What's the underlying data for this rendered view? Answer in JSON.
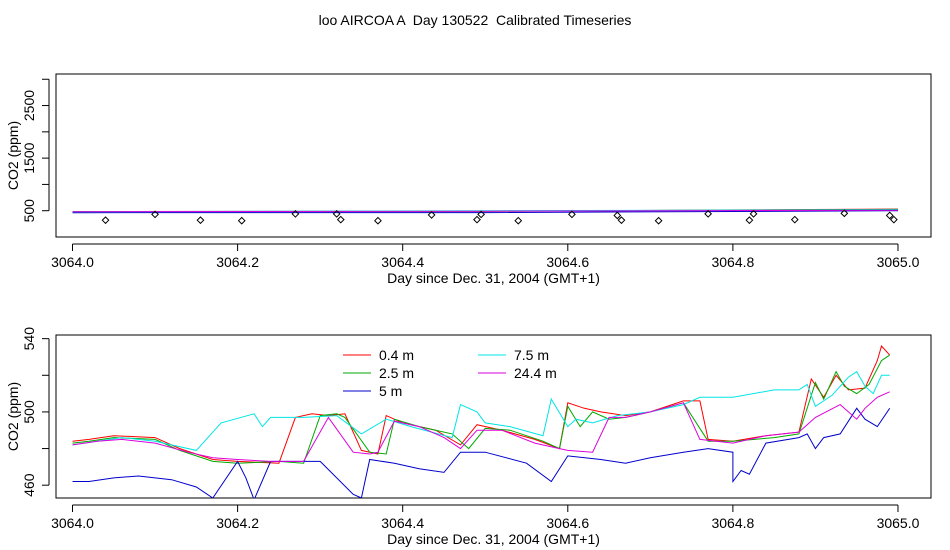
{
  "figure": {
    "title": "loo AIRCOA A  Day 130522  Calibrated Timeseries"
  },
  "chart_data": [
    {
      "type": "line",
      "title": "",
      "xlabel": "Day since Dec. 31, 2004 (GMT+1)",
      "ylabel": "CO2 (ppm)",
      "xlim": [
        3063.98,
        3065.04
      ],
      "ylim": [
        0,
        3100
      ],
      "xticks": [
        3064.0,
        3064.2,
        3064.4,
        3064.6,
        3064.8,
        3065.0
      ],
      "xtick_labels": [
        "3064.0",
        "3064.2",
        "3064.4",
        "3064.6",
        "3064.8",
        "3065.0"
      ],
      "yticks": [
        500,
        1500,
        2500
      ],
      "ytick_labels": [
        "500",
        "1500",
        "2500"
      ],
      "yminor_ticks": [
        1000,
        2000,
        3000
      ],
      "grid": false,
      "series": [
        {
          "color": "#ff0000",
          "x": [
            3064.0,
            3064.5,
            3065.0
          ],
          "y": [
            485,
            490,
            530
          ]
        },
        {
          "color": "#00aa00",
          "x": [
            3064.0,
            3064.5,
            3065.0
          ],
          "y": [
            483,
            489,
            527
          ]
        },
        {
          "color": "#0000cc",
          "x": [
            3064.0,
            3064.5,
            3065.0
          ],
          "y": [
            462,
            465,
            500
          ]
        },
        {
          "color": "#00e5e5",
          "x": [
            3064.0,
            3064.5,
            3065.0
          ],
          "y": [
            482,
            500,
            520
          ]
        },
        {
          "color": "#dd00dd",
          "x": [
            3064.0,
            3064.5,
            3065.0
          ],
          "y": [
            481,
            490,
            510
          ]
        }
      ],
      "scatter": {
        "marker": "diamond",
        "x": [
          3064.04,
          3064.1,
          3064.155,
          3064.205,
          3064.27,
          3064.32,
          3064.325,
          3064.37,
          3064.435,
          3064.49,
          3064.495,
          3064.54,
          3064.605,
          3064.66,
          3064.665,
          3064.71,
          3064.77,
          3064.82,
          3064.825,
          3064.875,
          3064.935,
          3064.99,
          3064.995
        ],
        "y": [
          320,
          430,
          320,
          310,
          440,
          440,
          330,
          310,
          420,
          330,
          430,
          310,
          430,
          410,
          320,
          310,
          440,
          320,
          440,
          330,
          450,
          410,
          330
        ]
      }
    },
    {
      "type": "line",
      "title": "",
      "xlabel": "Day since Dec. 31, 2004 (GMT+1)",
      "ylabel": "CO2 (ppm)",
      "xlim": [
        3063.98,
        3065.04
      ],
      "ylim": [
        453,
        542
      ],
      "xticks": [
        3064.0,
        3064.2,
        3064.4,
        3064.6,
        3064.8,
        3065.0
      ],
      "xtick_labels": [
        "3064.0",
        "3064.2",
        "3064.4",
        "3064.6",
        "3064.8",
        "3065.0"
      ],
      "yticks": [
        460,
        500,
        540
      ],
      "ytick_labels": [
        "460",
        "500",
        "540"
      ],
      "yminor_ticks": [
        480,
        520
      ],
      "grid": false,
      "legend": {
        "placement": "top-center",
        "entries": [
          {
            "label": "0.4 m",
            "color": "#ff0000"
          },
          {
            "label": "2.5 m",
            "color": "#00aa00"
          },
          {
            "label": "5 m",
            "color": "#0000cc"
          },
          {
            "label": "7.5 m",
            "color": "#00e5e5"
          },
          {
            "label": "24.4 m",
            "color": "#dd00dd"
          }
        ]
      },
      "series": [
        {
          "name": "0.4 m",
          "color": "#ff0000",
          "x": [
            3064.0,
            3064.02,
            3064.05,
            3064.1,
            3064.13,
            3064.17,
            3064.2,
            3064.25,
            3064.27,
            3064.29,
            3064.31,
            3064.33,
            3064.35,
            3064.37,
            3064.38,
            3064.4,
            3064.44,
            3064.47,
            3064.49,
            3064.52,
            3064.56,
            3064.59,
            3064.6,
            3064.62,
            3064.64,
            3064.67,
            3064.7,
            3064.74,
            3064.76,
            3064.77,
            3064.8,
            3064.84,
            3064.88,
            3064.895,
            3064.91,
            3064.925,
            3064.94,
            3064.96,
            3064.975,
            3064.98,
            3064.99
          ],
          "y": [
            484,
            485,
            487,
            486,
            480,
            474,
            473,
            472,
            497,
            499,
            498,
            499,
            479,
            477,
            498,
            494,
            490,
            482,
            493,
            490,
            485,
            480,
            505,
            502,
            500,
            498,
            500,
            506,
            506,
            485,
            484,
            487,
            489,
            518,
            508,
            520,
            512,
            513,
            528,
            536,
            531
          ]
        },
        {
          "name": "2.5 m",
          "color": "#00aa00",
          "x": [
            3064.0,
            3064.02,
            3064.05,
            3064.1,
            3064.13,
            3064.17,
            3064.2,
            3064.25,
            3064.28,
            3064.3,
            3064.32,
            3064.33,
            3064.36,
            3064.38,
            3064.39,
            3064.42,
            3064.46,
            3064.48,
            3064.5,
            3064.53,
            3064.57,
            3064.59,
            3064.6,
            3064.615,
            3064.63,
            3064.65,
            3064.67,
            3064.7,
            3064.74,
            3064.77,
            3064.8,
            3064.85,
            3064.88,
            3064.9,
            3064.91,
            3064.925,
            3064.935,
            3064.95,
            3064.965,
            3064.98,
            3064.99
          ],
          "y": [
            483,
            484,
            486,
            485,
            479,
            473,
            472,
            473,
            472,
            498,
            499,
            497,
            478,
            477,
            496,
            492,
            488,
            480,
            491,
            490,
            484,
            480,
            503,
            492,
            500,
            496,
            497,
            500,
            505,
            484,
            484,
            486,
            488,
            516,
            507,
            522,
            514,
            510,
            515,
            528,
            531
          ]
        },
        {
          "name": "5 m",
          "color": "#0000cc",
          "x": [
            3064.0,
            3064.02,
            3064.05,
            3064.08,
            3064.12,
            3064.15,
            3064.17,
            3064.2,
            3064.21,
            3064.22,
            3064.24,
            3064.3,
            3064.34,
            3064.35,
            3064.36,
            3064.39,
            3064.42,
            3064.45,
            3064.47,
            3064.5,
            3064.55,
            3064.58,
            3064.6,
            3064.64,
            3064.67,
            3064.7,
            3064.74,
            3064.77,
            3064.8,
            3064.8,
            3064.81,
            3064.82,
            3064.84,
            3064.88,
            3064.89,
            3064.9,
            3064.91,
            3064.93,
            3064.95,
            3064.96,
            3064.975,
            3064.99
          ],
          "y": [
            462,
            462,
            464,
            465,
            463,
            459,
            453,
            473,
            464,
            452,
            473,
            473,
            455,
            453,
            474,
            472,
            469,
            467,
            478,
            478,
            472,
            462,
            476,
            474,
            472,
            475,
            478,
            480,
            478,
            462,
            468,
            466,
            483,
            486,
            488,
            480,
            486,
            488,
            502,
            496,
            492,
            502
          ]
        },
        {
          "name": "7.5 m",
          "color": "#00e5e5",
          "x": [
            3064.0,
            3064.03,
            3064.06,
            3064.1,
            3064.15,
            3064.18,
            3064.22,
            3064.23,
            3064.24,
            3064.28,
            3064.32,
            3064.35,
            3064.38,
            3064.41,
            3064.46,
            3064.47,
            3064.49,
            3064.5,
            3064.53,
            3064.57,
            3064.58,
            3064.6,
            3064.61,
            3064.63,
            3064.66,
            3064.7,
            3064.74,
            3064.76,
            3064.8,
            3064.85,
            3064.88,
            3064.89,
            3064.9,
            3064.92,
            3064.94,
            3064.95,
            3064.96,
            3064.97,
            3064.98,
            3064.99
          ],
          "y": [
            482,
            484,
            486,
            484,
            479,
            494,
            499,
            492,
            497,
            497,
            498,
            488,
            496,
            492,
            486,
            504,
            500,
            494,
            492,
            487,
            507,
            492,
            496,
            494,
            498,
            500,
            504,
            508,
            508,
            512,
            512,
            515,
            503,
            509,
            519,
            522,
            514,
            510,
            520,
            520
          ]
        },
        {
          "name": "24.4 m",
          "color": "#dd00dd",
          "x": [
            3064.0,
            3064.03,
            3064.06,
            3064.1,
            3064.14,
            3064.17,
            3064.2,
            3064.24,
            3064.28,
            3064.31,
            3064.34,
            3064.36,
            3064.37,
            3064.39,
            3064.42,
            3064.45,
            3064.47,
            3064.49,
            3064.52,
            3064.56,
            3064.59,
            3064.6,
            3064.63,
            3064.65,
            3064.67,
            3064.7,
            3064.74,
            3064.76,
            3064.8,
            3064.84,
            3064.88,
            3064.9,
            3064.93,
            3064.95,
            3064.96,
            3064.975,
            3064.99
          ],
          "y": [
            482,
            484,
            485,
            483,
            478,
            475,
            474,
            473,
            473,
            497,
            478,
            477,
            478,
            495,
            492,
            486,
            480,
            490,
            490,
            483,
            480,
            479,
            478,
            497,
            497,
            500,
            505,
            485,
            483,
            487,
            489,
            497,
            504,
            496,
            502,
            508,
            511
          ]
        }
      ]
    }
  ]
}
